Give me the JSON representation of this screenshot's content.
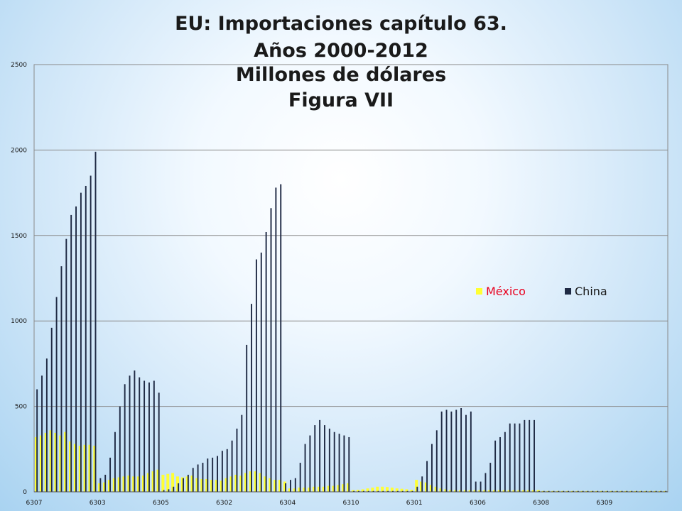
{
  "chart_data": {
    "type": "bar",
    "title_lines": [
      "EU: Importaciones capítulo 63.",
      "Años 2000-2012",
      "Millones de dólares",
      "Figura VII"
    ],
    "xlabel": "",
    "ylabel": "",
    "ylim": [
      0,
      2500
    ],
    "y_ticks": [
      "0",
      "500",
      "1000",
      "1500",
      "2000",
      "2500"
    ],
    "x_tick_labels": [
      "6307",
      "6303",
      "6305",
      "6302",
      "6304",
      "6310",
      "6301",
      "6306",
      "6308",
      "6309"
    ],
    "years_per_group": 13,
    "grid": true,
    "legend_position": "right",
    "groups": [
      {
        "code": "6307",
        "mexico": [
          320,
          330,
          345,
          360,
          345,
          330,
          350,
          295,
          280,
          270,
          275,
          275,
          270
        ],
        "china": [
          600,
          680,
          780,
          960,
          1140,
          1320,
          1480,
          1620,
          1670,
          1750,
          1790,
          1850,
          1990
        ]
      },
      {
        "code": "6303",
        "mexico": [
          50,
          55,
          70,
          80,
          85,
          90,
          95,
          90,
          90,
          95,
          110,
          120,
          130
        ],
        "china": [
          80,
          100,
          200,
          350,
          500,
          630,
          680,
          710,
          670,
          650,
          640,
          650,
          580
        ]
      },
      {
        "code": "6305",
        "mexico": [
          100,
          105,
          110,
          90,
          85,
          90,
          95,
          80,
          75,
          75,
          70,
          70,
          65
        ],
        "china": [
          10,
          15,
          30,
          50,
          80,
          100,
          140,
          160,
          170,
          195,
          200,
          210,
          240
        ]
      },
      {
        "code": "6302",
        "mexico": [
          80,
          90,
          100,
          95,
          110,
          120,
          120,
          110,
          90,
          80,
          70,
          70,
          60
        ],
        "china": [
          250,
          300,
          370,
          450,
          860,
          1100,
          1360,
          1400,
          1520,
          1660,
          1780,
          1800,
          50
        ]
      },
      {
        "code": "6304",
        "mexico": [
          20,
          20,
          25,
          25,
          25,
          30,
          30,
          30,
          35,
          35,
          40,
          45,
          50
        ],
        "china": [
          70,
          80,
          170,
          280,
          330,
          390,
          420,
          390,
          370,
          350,
          340,
          330,
          320
        ]
      },
      {
        "code": "6310",
        "mexico": [
          10,
          12,
          15,
          20,
          25,
          30,
          30,
          28,
          25,
          20,
          18,
          15,
          12
        ],
        "china": [
          5,
          5,
          5,
          5,
          5,
          5,
          5,
          5,
          5,
          5,
          5,
          5,
          5
        ]
      },
      {
        "code": "6301",
        "mexico": [
          70,
          60,
          55,
          40,
          30,
          20,
          15,
          12,
          10,
          10,
          10,
          10,
          10
        ],
        "china": [
          30,
          90,
          180,
          280,
          360,
          470,
          480,
          470,
          480,
          490,
          450,
          470,
          60
        ]
      },
      {
        "code": "6306",
        "mexico": [
          10,
          10,
          10,
          10,
          10,
          10,
          10,
          10,
          10,
          10,
          10,
          10,
          10
        ],
        "china": [
          60,
          110,
          170,
          300,
          320,
          350,
          400,
          400,
          400,
          420,
          420,
          420,
          5
        ]
      },
      {
        "code": "6308",
        "mexico": [
          5,
          5,
          5,
          5,
          5,
          5,
          5,
          5,
          5,
          5,
          5,
          5,
          5
        ],
        "china": [
          5,
          5,
          5,
          5,
          5,
          5,
          5,
          5,
          5,
          5,
          5,
          5,
          5
        ]
      },
      {
        "code": "6309",
        "mexico": [
          5,
          5,
          5,
          5,
          5,
          5,
          5,
          5,
          5,
          5,
          5,
          5,
          5
        ],
        "china": [
          5,
          5,
          5,
          5,
          5,
          5,
          5,
          5,
          5,
          5,
          5,
          5,
          5
        ]
      }
    ],
    "series": [
      {
        "name": "México",
        "color": "#ffff33",
        "label_color": "#e8001e"
      },
      {
        "name": "China",
        "color": "#1f2a44",
        "label_color": "#1a1a1a"
      }
    ]
  }
}
